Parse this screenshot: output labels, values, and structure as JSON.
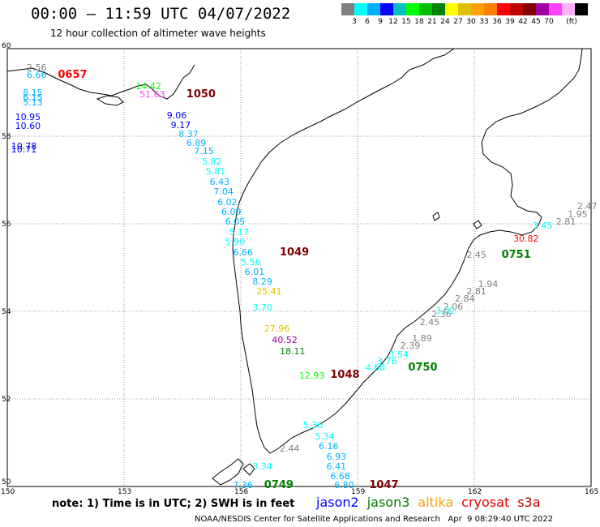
{
  "header": {
    "title": "00:00 – 11:59 UTC 04/07/2022",
    "subtitle": "12 hour collection of altimeter wave heights"
  },
  "colorbar": {
    "colors": [
      "#7f7f7f",
      "#00ffff",
      "#00b0ff",
      "#0000ff",
      "#00c0c0",
      "#00ff00",
      "#00c000",
      "#008000",
      "#ffff00",
      "#e0c000",
      "#ffa000",
      "#ff8000",
      "#ff0000",
      "#c00000",
      "#800000",
      "#a000a0",
      "#ff40ff",
      "#ffb0ff",
      "#000000"
    ],
    "labels": [
      "3",
      "6",
      "9",
      "12",
      "15",
      "18",
      "21",
      "24",
      "27",
      "30",
      "33",
      "36",
      "39",
      "42",
      "45",
      "70",
      "(ft)"
    ]
  },
  "axes": {
    "x_ticks": [
      "150",
      "153",
      "156",
      "159",
      "162",
      "165"
    ],
    "y_ticks": [
      "60",
      "58",
      "56",
      "54",
      "52",
      "50"
    ]
  },
  "measurements": [
    {
      "text": "2.56",
      "lon": 150.5,
      "lat": 59.56,
      "color": "#7f7f7f"
    },
    {
      "text": "6.66",
      "lon": 150.5,
      "lat": 59.38,
      "color": "#00b0ff"
    },
    {
      "text": "0657",
      "lon": 151.3,
      "lat": 59.38,
      "color": "#ff0000",
      "id": true
    },
    {
      "text": "8.15",
      "lon": 150.4,
      "lat": 58.98,
      "color": "#00b0ff"
    },
    {
      "text": "6.15",
      "lon": 150.4,
      "lat": 58.87,
      "color": "#00b0ff"
    },
    {
      "text": "5.13",
      "lon": 150.4,
      "lat": 58.76,
      "color": "#00b0ff"
    },
    {
      "text": "14.42",
      "lon": 153.3,
      "lat": 59.13,
      "color": "#00ff00"
    },
    {
      "text": "51.63",
      "lon": 153.4,
      "lat": 58.95,
      "color": "#ff40ff"
    },
    {
      "text": "1050",
      "lon": 154.6,
      "lat": 58.95,
      "color": "#800000",
      "id": true
    },
    {
      "text": "10.95",
      "lon": 150.2,
      "lat": 58.43,
      "color": "#0000ff"
    },
    {
      "text": "10.60",
      "lon": 150.2,
      "lat": 58.23,
      "color": "#0000ff"
    },
    {
      "text": "10.78",
      "lon": 150.1,
      "lat": 57.76,
      "color": "#0000ff"
    },
    {
      "text": "10.71",
      "lon": 150.1,
      "lat": 57.69,
      "color": "#0000ff"
    },
    {
      "text": "9.06",
      "lon": 154.1,
      "lat": 58.47,
      "color": "#0000ff"
    },
    {
      "text": "9.17",
      "lon": 154.2,
      "lat": 58.24,
      "color": "#0000ff"
    },
    {
      "text": "8.37",
      "lon": 154.4,
      "lat": 58.04,
      "color": "#00b0ff"
    },
    {
      "text": "6.89",
      "lon": 154.6,
      "lat": 57.84,
      "color": "#00b0ff"
    },
    {
      "text": "7.15",
      "lon": 154.8,
      "lat": 57.64,
      "color": "#00b0ff"
    },
    {
      "text": "5.82",
      "lon": 155.0,
      "lat": 57.41,
      "color": "#00ffff"
    },
    {
      "text": "5.81",
      "lon": 155.1,
      "lat": 57.18,
      "color": "#00ffff"
    },
    {
      "text": "6.43",
      "lon": 155.2,
      "lat": 56.95,
      "color": "#00b0ff"
    },
    {
      "text": "7.04",
      "lon": 155.3,
      "lat": 56.72,
      "color": "#00b0ff"
    },
    {
      "text": "6.02",
      "lon": 155.4,
      "lat": 56.49,
      "color": "#00b0ff"
    },
    {
      "text": "6.09",
      "lon": 155.5,
      "lat": 56.26,
      "color": "#00b0ff"
    },
    {
      "text": "6.05",
      "lon": 155.6,
      "lat": 56.03,
      "color": "#00b0ff"
    },
    {
      "text": "5.17",
      "lon": 155.7,
      "lat": 55.8,
      "color": "#00ffff"
    },
    {
      "text": "5.90",
      "lon": 155.6,
      "lat": 55.57,
      "color": "#00ffff"
    },
    {
      "text": "6.66",
      "lon": 155.8,
      "lat": 55.34,
      "color": "#00b0ff"
    },
    {
      "text": "1049",
      "lon": 157.0,
      "lat": 55.34,
      "color": "#800000",
      "id": true
    },
    {
      "text": "5.56",
      "lon": 156.0,
      "lat": 55.11,
      "color": "#00ffff"
    },
    {
      "text": "6.01",
      "lon": 156.1,
      "lat": 54.89,
      "color": "#00b0ff"
    },
    {
      "text": "8.29",
      "lon": 156.3,
      "lat": 54.67,
      "color": "#00b0ff"
    },
    {
      "text": "25.41",
      "lon": 156.4,
      "lat": 54.45,
      "color": "#e0c000"
    },
    {
      "text": "3.70",
      "lon": 156.3,
      "lat": 54.08,
      "color": "#00ffff"
    },
    {
      "text": "27.96",
      "lon": 156.6,
      "lat": 53.6,
      "color": "#e0c000"
    },
    {
      "text": "40.52",
      "lon": 156.8,
      "lat": 53.34,
      "color": "#a000a0"
    },
    {
      "text": "18.11",
      "lon": 157.0,
      "lat": 53.07,
      "color": "#008000"
    },
    {
      "text": "12.93",
      "lon": 157.5,
      "lat": 52.52,
      "color": "#00ff00"
    },
    {
      "text": "1048",
      "lon": 158.3,
      "lat": 52.53,
      "color": "#800000",
      "id": true
    },
    {
      "text": "5.36",
      "lon": 157.6,
      "lat": 51.38,
      "color": "#00ffff"
    },
    {
      "text": "5.34",
      "lon": 157.9,
      "lat": 51.13,
      "color": "#00ffff"
    },
    {
      "text": "6.16",
      "lon": 158.0,
      "lat": 50.9,
      "color": "#00b0ff"
    },
    {
      "text": "6.93",
      "lon": 158.2,
      "lat": 50.67,
      "color": "#00b0ff"
    },
    {
      "text": "6.41",
      "lon": 158.2,
      "lat": 50.45,
      "color": "#00b0ff"
    },
    {
      "text": "6.68",
      "lon": 158.3,
      "lat": 50.23,
      "color": "#00b0ff"
    },
    {
      "text": "6.80",
      "lon": 158.4,
      "lat": 50.01,
      "color": "#00b0ff"
    },
    {
      "text": "1047",
      "lon": 159.3,
      "lat": 50.01,
      "color": "#800000",
      "id": true
    },
    {
      "text": "2.44",
      "lon": 157.0,
      "lat": 50.85,
      "color": "#7f7f7f"
    },
    {
      "text": "3.34",
      "lon": 156.3,
      "lat": 50.45,
      "color": "#00ffff"
    },
    {
      "text": "7.36",
      "lon": 155.8,
      "lat": 50.01,
      "color": "#00b0ff"
    },
    {
      "text": "0749",
      "lon": 156.6,
      "lat": 50.01,
      "color": "#008000",
      "id": true
    },
    {
      "text": "4.68",
      "lon": 159.2,
      "lat": 52.7,
      "color": "#00ffff"
    },
    {
      "text": "3.76",
      "lon": 159.5,
      "lat": 52.85,
      "color": "#00ffff"
    },
    {
      "text": "3.54",
      "lon": 159.8,
      "lat": 53.0,
      "color": "#00ffff"
    },
    {
      "text": "2.39",
      "lon": 160.1,
      "lat": 53.2,
      "color": "#7f7f7f"
    },
    {
      "text": "1.89",
      "lon": 160.4,
      "lat": 53.37,
      "color": "#7f7f7f"
    },
    {
      "text": "0750",
      "lon": 160.3,
      "lat": 52.7,
      "color": "#008000",
      "id": true
    },
    {
      "text": "2.45",
      "lon": 160.6,
      "lat": 53.75,
      "color": "#7f7f7f"
    },
    {
      "text": "2.36",
      "lon": 160.9,
      "lat": 53.92,
      "color": "#7f7f7f"
    },
    {
      "text": "2.06",
      "lon": 161.2,
      "lat": 54.1,
      "color": "#7f7f7f"
    },
    {
      "text": "2.84",
      "lon": 161.5,
      "lat": 54.28,
      "color": "#7f7f7f"
    },
    {
      "text": "2.81",
      "lon": 161.8,
      "lat": 54.45,
      "color": "#7f7f7f"
    },
    {
      "text": "1.94",
      "lon": 162.1,
      "lat": 54.62,
      "color": "#7f7f7f"
    },
    {
      "text": "3.02",
      "lon": 161.0,
      "lat": 54.0,
      "color": "#00ffff"
    },
    {
      "text": "2.45",
      "lon": 161.8,
      "lat": 55.28,
      "color": "#7f7f7f"
    },
    {
      "text": "0751",
      "lon": 162.7,
      "lat": 55.28,
      "color": "#008000",
      "id": true
    },
    {
      "text": "30.82",
      "lon": 163.0,
      "lat": 55.65,
      "color": "#ff0000"
    },
    {
      "text": "3.45",
      "lon": 163.5,
      "lat": 55.94,
      "color": "#00ffff"
    },
    {
      "text": "2.81",
      "lon": 164.1,
      "lat": 56.04,
      "color": "#7f7f7f"
    },
    {
      "text": "1.95",
      "lon": 164.4,
      "lat": 56.21,
      "color": "#7f7f7f"
    },
    {
      "text": "2.47",
      "lon": 164.7,
      "lat": 56.39,
      "color": "#7f7f7f"
    }
  ],
  "footer": {
    "note": "note: 1) Time is in UTC; 2) SWH is in feet",
    "satellites": [
      {
        "name": "jason2",
        "color": "#0000ff"
      },
      {
        "name": "jason3",
        "color": "#008000"
      },
      {
        "name": "altika",
        "color": "#ffa000"
      },
      {
        "name": "cryosat",
        "color": "#e00000"
      },
      {
        "name": "s3a",
        "color": "#c00000"
      }
    ],
    "credit": "NOAA/NESDIS Center for Satellite Applications and Research   Apr  9 08:29:40 UTC 2022"
  }
}
